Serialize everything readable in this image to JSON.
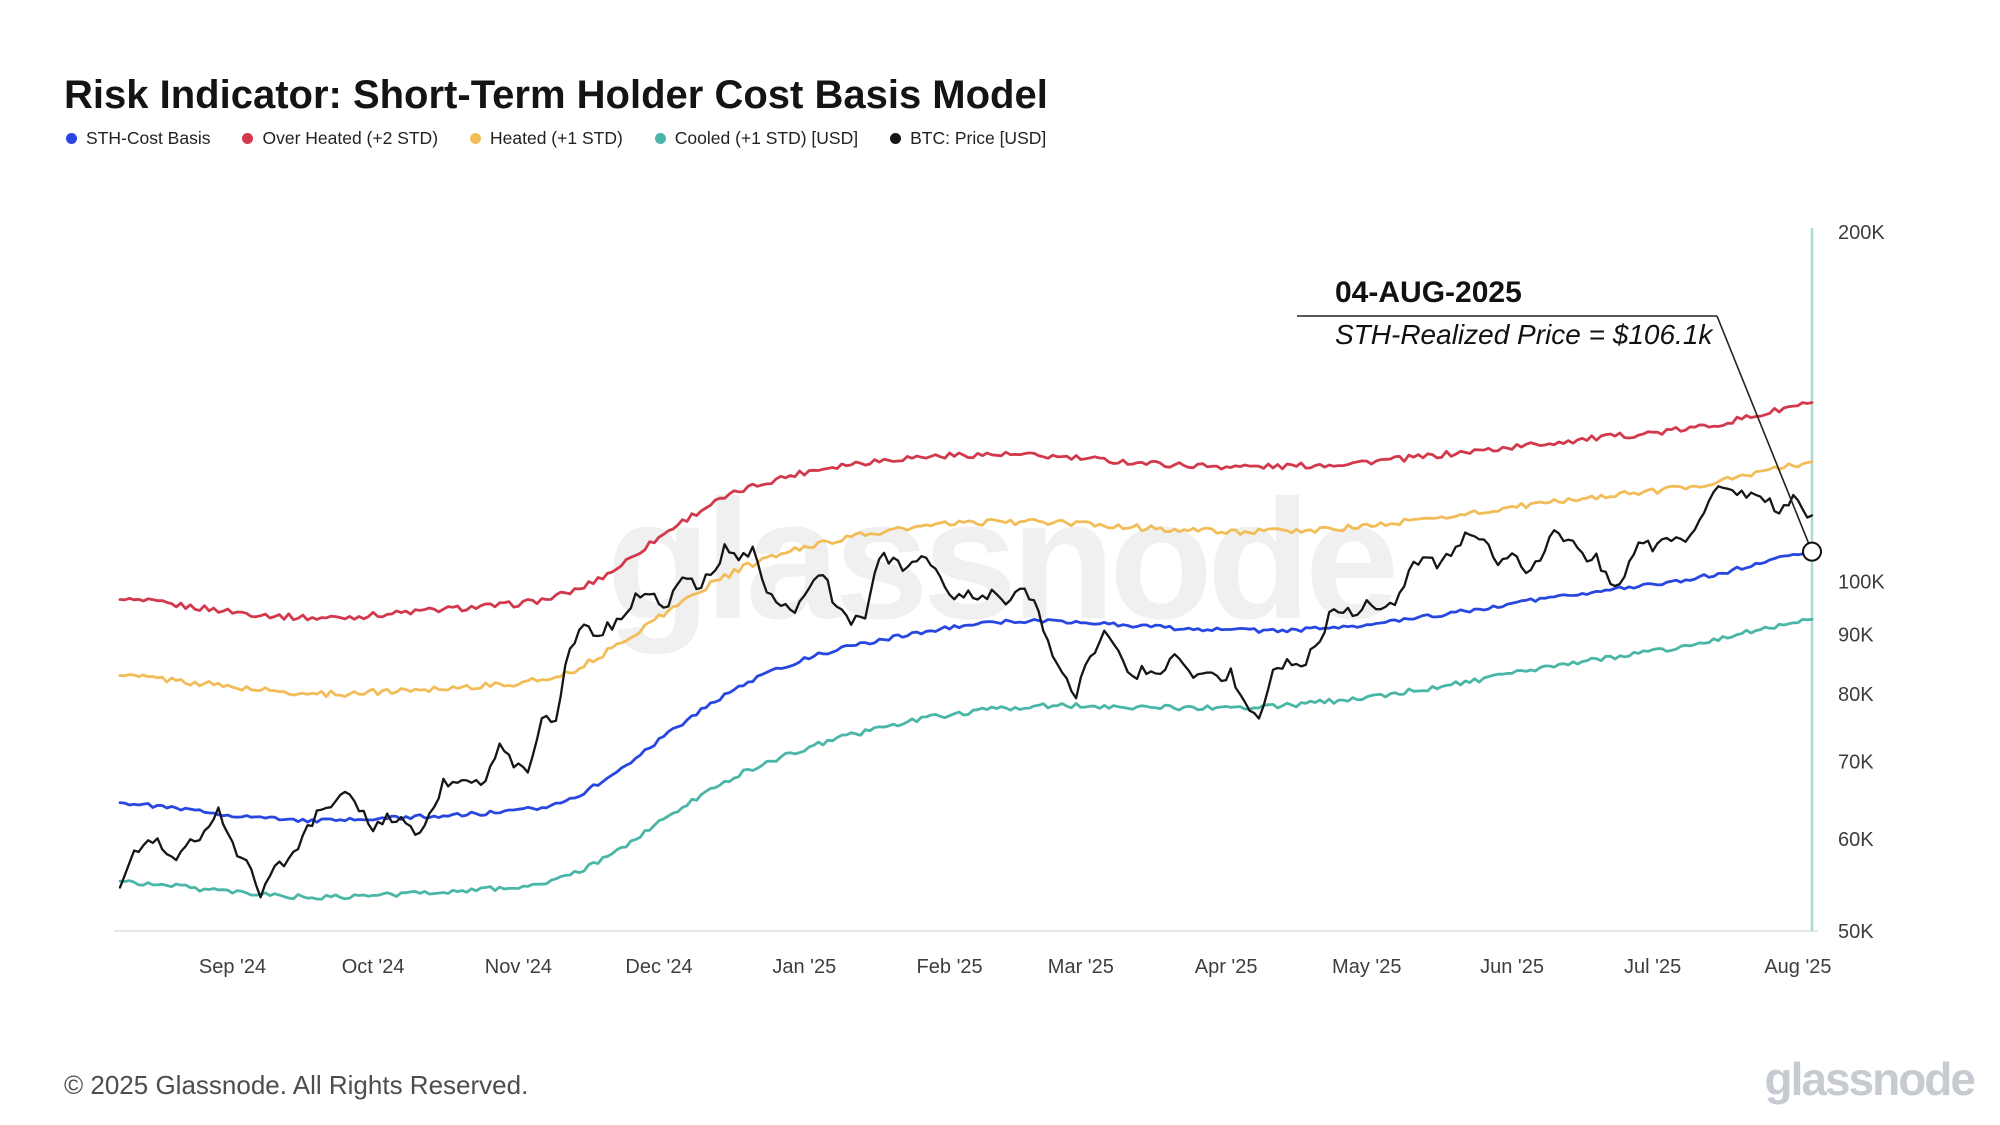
{
  "header": {
    "title": "Risk Indicator: Short-Term Holder Cost Basis Model"
  },
  "legend": {
    "items": [
      {
        "label": "STH-Cost Basis",
        "color": "#2847e0"
      },
      {
        "label": "Over Heated (+2 STD)",
        "color": "#d2394d"
      },
      {
        "label": "Heated (+1 STD)",
        "color": "#f2bd58"
      },
      {
        "label": "Cooled (+1 STD) [USD]",
        "color": "#49b6a6"
      },
      {
        "label": "BTC: Price [USD]",
        "color": "#161616"
      }
    ]
  },
  "annotation": {
    "date": "04-AUG-2025",
    "price": "STH-Realized Price = $106.1k"
  },
  "watermark": {
    "text": "glassnode"
  },
  "footer": {
    "copyright": "© 2025 Glassnode. All Rights Reserved.",
    "brand": "glassnode"
  },
  "chart_data": {
    "type": "line",
    "title": "Risk Indicator: Short-Term Holder Cost Basis Model",
    "y_scale": "log",
    "y_unit": "USD (thousands)",
    "ylim": [
      50,
      200
    ],
    "y_ticks": [
      {
        "value": 200,
        "label": "200K"
      },
      {
        "value": 100,
        "label": "100K"
      },
      {
        "value": 90,
        "label": "90K"
      },
      {
        "value": 80,
        "label": "80K"
      },
      {
        "value": 70,
        "label": "70K"
      },
      {
        "value": 60,
        "label": "60K"
      },
      {
        "value": 50,
        "label": "50K"
      }
    ],
    "x_unit": "days since 2024-08-08",
    "x_ticks": [
      {
        "day": 24,
        "label": "Sep '24"
      },
      {
        "day": 54,
        "label": "Oct '24"
      },
      {
        "day": 85,
        "label": "Nov '24"
      },
      {
        "day": 115,
        "label": "Dec '24"
      },
      {
        "day": 146,
        "label": "Jan '25"
      },
      {
        "day": 177,
        "label": "Feb '25"
      },
      {
        "day": 205,
        "label": "Mar '25"
      },
      {
        "day": 236,
        "label": "Apr '25"
      },
      {
        "day": 266,
        "label": "May '25"
      },
      {
        "day": 297,
        "label": "Jun '25"
      },
      {
        "day": 327,
        "label": "Jul '25"
      },
      {
        "day": 358,
        "label": "Aug '25"
      }
    ],
    "current_date_line_day": 361,
    "grid": false,
    "legend_position": "top-left",
    "band_days": [
      0,
      7,
      14,
      21,
      28,
      35,
      42,
      49,
      56,
      63,
      70,
      77,
      84,
      91,
      98,
      105,
      112,
      119,
      126,
      133,
      140,
      147,
      154,
      161,
      168,
      175,
      182,
      189,
      196,
      203,
      210,
      217,
      224,
      231,
      238,
      245,
      252,
      259,
      266,
      273,
      280,
      287,
      294,
      301,
      308,
      315,
      322,
      329,
      336,
      343,
      350,
      357,
      361
    ],
    "btc_days": [
      0,
      3,
      6,
      9,
      12,
      15,
      18,
      21,
      24,
      27,
      30,
      33,
      36,
      39,
      42,
      45,
      48,
      51,
      54,
      57,
      60,
      63,
      66,
      69,
      72,
      75,
      78,
      81,
      84,
      87,
      90,
      93,
      96,
      99,
      102,
      105,
      108,
      111,
      114,
      117,
      120,
      123,
      126,
      129,
      132,
      135,
      138,
      141,
      144,
      147,
      150,
      153,
      156,
      159,
      162,
      165,
      168,
      171,
      174,
      177,
      180,
      183,
      186,
      189,
      192,
      195,
      198,
      201,
      204,
      207,
      210,
      213,
      216,
      219,
      222,
      225,
      228,
      231,
      234,
      237,
      240,
      243,
      246,
      249,
      252,
      255,
      258,
      261,
      264,
      267,
      270,
      273,
      276,
      279,
      282,
      285,
      288,
      291,
      294,
      297,
      300,
      303,
      306,
      309,
      312,
      315,
      318,
      321,
      324,
      327,
      330,
      333,
      336,
      339,
      342,
      345,
      348,
      351,
      354,
      357,
      360,
      361
    ],
    "series": [
      {
        "name": "Over Heated (+2 STD)",
        "color": "#d2394d",
        "width": 2.8,
        "jitter": 0.006,
        "days_ref": "band_days",
        "values": [
          96.5,
          96.0,
          95.2,
          94.5,
          93.8,
          93.3,
          93.0,
          93.2,
          93.7,
          94.2,
          94.7,
          95.1,
          95.6,
          96.5,
          98.5,
          102.0,
          107.0,
          112.0,
          116.5,
          120.0,
          122.5,
          124.5,
          126.0,
          127.0,
          127.8,
          128.3,
          128.6,
          128.6,
          128.3,
          127.8,
          127.2,
          126.6,
          126.1,
          125.8,
          125.6,
          125.6,
          125.8,
          126.2,
          126.8,
          127.5,
          128.3,
          129.2,
          130.1,
          131.1,
          132.0,
          132.9,
          133.7,
          134.5,
          135.6,
          137.2,
          139.2,
          141.5,
          142.6
        ]
      },
      {
        "name": "Heated (+1 STD)",
        "color": "#f2bd58",
        "width": 2.8,
        "jitter": 0.006,
        "days_ref": "band_days",
        "values": [
          83.0,
          82.6,
          82.0,
          81.4,
          80.8,
          80.3,
          80.0,
          80.1,
          80.4,
          80.7,
          81.0,
          81.3,
          81.6,
          82.4,
          84.2,
          87.5,
          91.5,
          95.5,
          99.5,
          102.8,
          105.3,
          107.3,
          108.9,
          110.1,
          111.1,
          111.9,
          112.4,
          112.6,
          112.5,
          112.2,
          111.8,
          111.3,
          110.9,
          110.6,
          110.4,
          110.4,
          110.6,
          111.0,
          111.6,
          112.4,
          113.3,
          114.3,
          115.3,
          116.4,
          117.4,
          118.3,
          119.1,
          119.9,
          120.9,
          122.4,
          124.2,
          126.0,
          126.8
        ]
      },
      {
        "name": "Cooled (+1 STD) [USD]",
        "color": "#49b6a6",
        "width": 2.8,
        "jitter": 0.005,
        "days_ref": "band_days",
        "values": [
          55.2,
          54.9,
          54.5,
          54.1,
          53.8,
          53.6,
          53.4,
          53.5,
          53.7,
          53.9,
          54.1,
          54.3,
          54.5,
          55.0,
          56.2,
          58.2,
          60.8,
          63.5,
          66.2,
          68.5,
          70.3,
          72.0,
          73.4,
          74.6,
          75.7,
          76.6,
          77.3,
          77.8,
          78.1,
          78.2,
          78.1,
          78.0,
          77.9,
          77.8,
          77.9,
          78.1,
          78.4,
          78.9,
          79.5,
          80.2,
          81.0,
          81.9,
          82.8,
          83.8,
          84.8,
          85.7,
          86.5,
          87.3,
          88.3,
          89.6,
          91.0,
          92.3,
          92.8
        ]
      },
      {
        "name": "STH-Cost Basis",
        "color": "#2847e0",
        "width": 2.8,
        "jitter": 0.004,
        "days_ref": "band_days",
        "values": [
          64.5,
          64.1,
          63.6,
          63.1,
          62.7,
          62.4,
          62.2,
          62.3,
          62.5,
          62.7,
          62.9,
          63.1,
          63.4,
          64.0,
          65.5,
          68.0,
          71.5,
          75.0,
          78.5,
          81.5,
          84.0,
          86.0,
          87.6,
          88.8,
          90.0,
          91.0,
          91.8,
          92.3,
          92.5,
          92.4,
          92.0,
          91.6,
          91.2,
          91.0,
          90.8,
          90.7,
          90.9,
          91.3,
          91.8,
          92.5,
          93.4,
          94.3,
          95.3,
          96.3,
          97.2,
          98.1,
          98.8,
          99.5,
          100.6,
          102.0,
          103.8,
          105.4,
          106.1
        ]
      },
      {
        "name": "BTC: Price [USD]",
        "color": "#161616",
        "width": 2.3,
        "jitter": 0.012,
        "days_ref": "btc_days",
        "values": [
          54.5,
          58.5,
          60.5,
          59.0,
          58.0,
          59.5,
          61.0,
          64.0,
          59.0,
          57.5,
          53.5,
          56.5,
          58.0,
          60.0,
          63.0,
          63.5,
          65.5,
          63.5,
          61.5,
          62.5,
          62.0,
          60.5,
          62.5,
          67.0,
          67.5,
          66.5,
          67.5,
          72.0,
          69.5,
          69.0,
          75.5,
          76.5,
          88.0,
          91.0,
          90.0,
          92.0,
          94.5,
          98.0,
          96.5,
          95.5,
          101.0,
          99.0,
          101.5,
          106.5,
          104.0,
          106.0,
          97.5,
          95.0,
          93.5,
          98.5,
          102.0,
          94.5,
          91.5,
          94.0,
          104.5,
          105.0,
          102.5,
          104.5,
          102.0,
          96.5,
          98.0,
          96.5,
          97.5,
          96.0,
          98.5,
          96.0,
          88.0,
          84.0,
          80.0,
          86.0,
          90.0,
          86.5,
          83.0,
          84.0,
          83.5,
          86.5,
          84.0,
          82.5,
          82.5,
          83.5,
          78.5,
          76.5,
          83.0,
          85.0,
          84.5,
          87.5,
          93.5,
          94.0,
          94.5,
          96.5,
          94.0,
          97.0,
          103.0,
          104.0,
          103.5,
          106.5,
          111.0,
          109.0,
          104.0,
          105.5,
          101.5,
          105.0,
          110.0,
          108.5,
          105.0,
          104.5,
          99.5,
          101.0,
          107.5,
          107.0,
          109.5,
          108.0,
          110.0,
          117.5,
          121.5,
          119.0,
          118.0,
          117.5,
          115.5,
          118.0,
          113.5,
          114.0
        ]
      }
    ],
    "end_marker": {
      "series": "STH-Cost Basis",
      "day": 361,
      "value": 106.1,
      "label": "STH-Realized Price = $106.1k"
    }
  }
}
